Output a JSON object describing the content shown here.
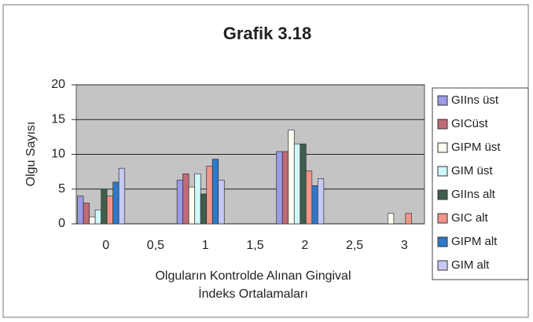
{
  "chart_data": {
    "type": "bar",
    "title": "Grafik 3.18",
    "ylabel": "Olgu Sayısı",
    "xlabel": [
      "Olguların Kontrolde Alınan Gingival",
      "İndeks Ortalamaları"
    ],
    "categories": [
      "0",
      "0,5",
      "1",
      "1,5",
      "2",
      "2,5",
      "3"
    ],
    "ylim": [
      0,
      20
    ],
    "yticks": [
      0,
      5,
      10,
      15,
      20
    ],
    "grid": true,
    "legend": "right",
    "series": [
      {
        "name": "GIIns üst",
        "color": "#9a9ae6",
        "values": [
          4,
          0,
          6.3,
          0,
          10.4,
          0,
          0
        ]
      },
      {
        "name": "GICüst",
        "color": "#c06a78",
        "values": [
          3,
          0,
          7.2,
          0,
          10.4,
          0,
          0
        ]
      },
      {
        "name": "GIPM üst",
        "color": "#fdfdf0",
        "values": [
          1,
          0,
          5.3,
          0,
          13.5,
          0,
          1.5
        ]
      },
      {
        "name": "GIM üst",
        "color": "#cff8fb",
        "values": [
          2,
          0,
          7.2,
          0,
          11.5,
          0,
          0
        ]
      },
      {
        "name": "GIIns alt",
        "color": "#3f5e4c",
        "values": [
          5,
          0,
          4.3,
          0,
          11.5,
          0,
          0
        ]
      },
      {
        "name": "GIC alt",
        "color": "#f49488",
        "values": [
          4,
          0,
          8.3,
          0,
          7.6,
          0,
          1.5
        ]
      },
      {
        "name": "GIPM alt",
        "color": "#2f78c8",
        "values": [
          6,
          0,
          9.3,
          0,
          5.5,
          0,
          0
        ]
      },
      {
        "name": "GIM alt",
        "color": "#c8c8f4",
        "values": [
          8,
          0,
          6.3,
          0,
          6.5,
          0,
          0
        ]
      }
    ]
  }
}
